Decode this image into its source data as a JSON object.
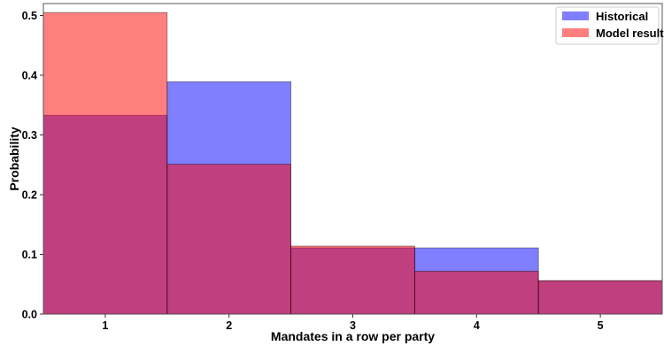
{
  "chart_data": {
    "type": "bar",
    "categories": [
      "1",
      "2",
      "3",
      "4",
      "5"
    ],
    "series": [
      {
        "name": "Historical",
        "values": [
          0.333,
          0.389,
          0.111,
          0.111,
          0.056
        ],
        "color": "#0000ff",
        "opacity": 0.5
      },
      {
        "name": "Model result",
        "values": [
          0.505,
          0.251,
          0.114,
          0.072,
          0.056
        ],
        "color": "#ff0000",
        "opacity": 0.5
      }
    ],
    "xlabel": "Mandates in a row per party",
    "ylabel": "Probability",
    "ylim": [
      0,
      0.52
    ],
    "xlim": [
      0.5,
      5.5
    ],
    "yticks": [
      "0.0",
      "0.1",
      "0.2",
      "0.3",
      "0.4",
      "0.5"
    ],
    "ytick_values": [
      0,
      0.1,
      0.2,
      0.3,
      0.4,
      0.5
    ],
    "grid": false,
    "legend_position": "top-right",
    "bar_width": 1.0
  }
}
